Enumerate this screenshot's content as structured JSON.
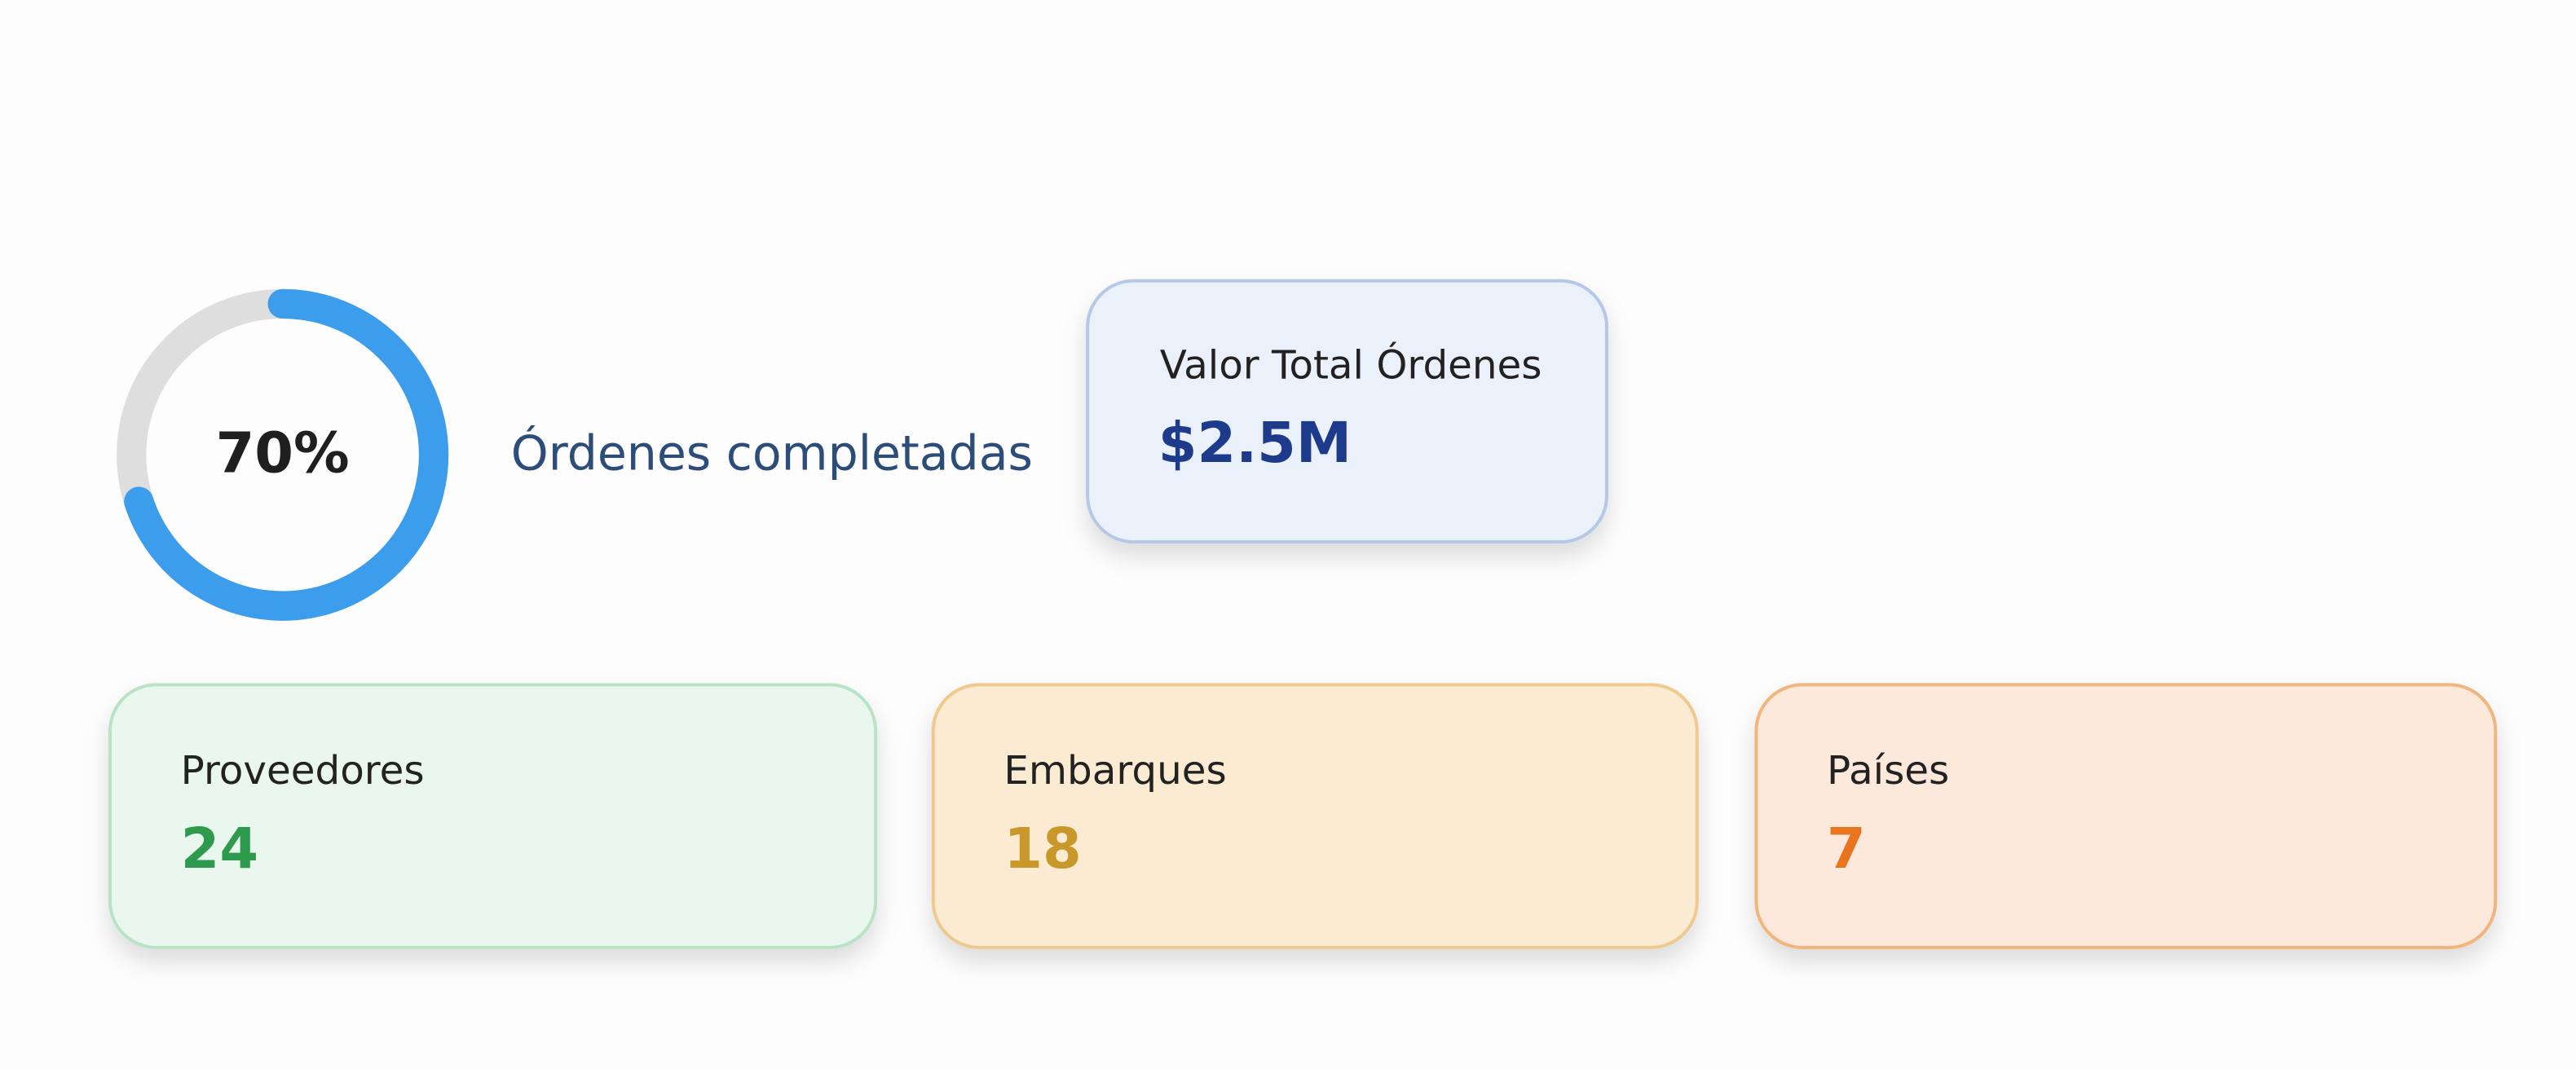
{
  "donut": {
    "value": 70,
    "label": "70%",
    "caption": "Órdenes completadas"
  },
  "total_card": {
    "label": "Valor Total Órdenes",
    "value": "$2.5M"
  },
  "cards": [
    {
      "label": "Proveedores",
      "value": 24
    },
    {
      "label": "Embarques",
      "value": 18
    },
    {
      "label": "Países",
      "value": 7
    }
  ]
}
